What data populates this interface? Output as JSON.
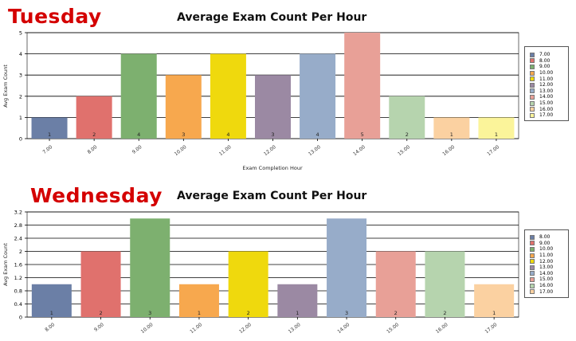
{
  "chart_data": [
    {
      "type": "bar",
      "day_title": "Tuesday",
      "title": "Average Exam Count Per Hour",
      "ylabel": "Avg Exam Count",
      "xlabel": "Exam Completion Hour",
      "ylim": [
        0,
        5
      ],
      "yticks": [
        "0",
        "1",
        "2",
        "3",
        "4",
        "5"
      ],
      "categories": [
        "7.00",
        "8.00",
        "9.00",
        "10.00",
        "11.00",
        "12.00",
        "13.00",
        "14.00",
        "15.00",
        "16.00",
        "17.00"
      ],
      "values": [
        1,
        2,
        4,
        3,
        4,
        3,
        4,
        5,
        2,
        1,
        1
      ],
      "data_labels": [
        "1",
        "2",
        "4",
        "3",
        "4",
        "3",
        "4",
        "5",
        "2",
        "1",
        "1"
      ],
      "colors": [
        "#6b7fa6",
        "#e0716d",
        "#7db06f",
        "#f7a84e",
        "#efd90d",
        "#9b89a3",
        "#97acc9",
        "#e8a097",
        "#b6d4ae",
        "#fbd1a1",
        "#fbf49a"
      ],
      "grid": true,
      "legend_placement": "right",
      "legend": [
        "7.00",
        "8.00",
        "9.00",
        "10.00",
        "11.00",
        "12.00",
        "13.00",
        "14.00",
        "15.00",
        "16.00",
        "17.00"
      ]
    },
    {
      "type": "bar",
      "day_title": "Wednesday",
      "title": "Average Exam Count Per Hour",
      "ylabel": "Avg Exam Count",
      "xlabel": "",
      "ylim": [
        0,
        3.2
      ],
      "yticks": [
        "0",
        "0.4",
        "0.8",
        "1.2",
        "1.6",
        "2",
        "2.4",
        "2.8",
        "3.2"
      ],
      "categories": [
        "8.00",
        "9.00",
        "10.00",
        "11.00",
        "12.00",
        "13.00",
        "14.00",
        "15.00",
        "16.00",
        "17.00"
      ],
      "values": [
        1,
        2,
        3,
        1,
        2,
        1,
        3,
        2,
        2,
        1
      ],
      "data_labels": [
        "1",
        "2",
        "3",
        "1",
        "2",
        "1",
        "3",
        "2",
        "2",
        "1"
      ],
      "colors": [
        "#6b7fa6",
        "#e0716d",
        "#7db06f",
        "#f7a84e",
        "#efd90d",
        "#9b89a3",
        "#97acc9",
        "#e8a097",
        "#b6d4ae",
        "#fbd1a1"
      ],
      "grid": true,
      "legend_placement": "right",
      "legend": [
        "8.00",
        "9.00",
        "10.00",
        "11.00",
        "12.00",
        "13.00",
        "14.00",
        "15.00",
        "16.00",
        "17.00"
      ]
    }
  ]
}
